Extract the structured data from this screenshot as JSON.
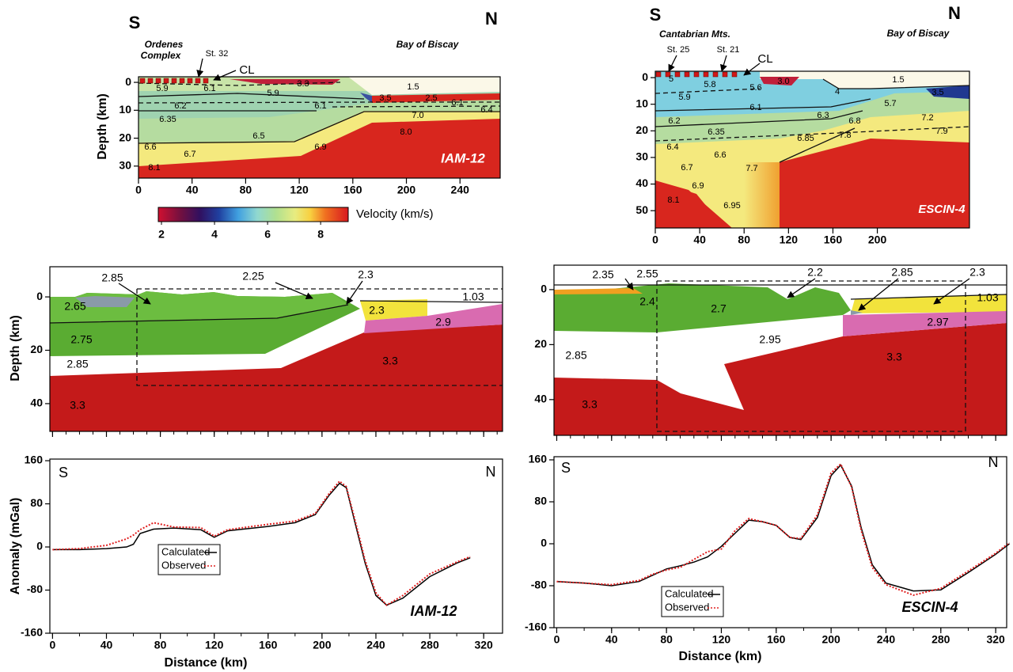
{
  "chart_data": [
    {
      "type": "section",
      "xlim": [
        0,
        270
      ],
      "ylim": [
        -2,
        34.3
      ],
      "xticks": [
        0,
        40,
        80,
        120,
        160,
        200,
        240
      ],
      "yticks": [
        0,
        10,
        20,
        30
      ],
      "ylabel": "Depth (km)",
      "region_labels": [
        "5.9",
        "6.1",
        "3.3",
        "5.9",
        "1.5",
        "3.5",
        "2.5",
        "6.2",
        "6.1",
        "6.1",
        "6.4",
        "6.35",
        "7.0",
        "6.5",
        "8.0",
        "6.6",
        "6.7",
        "6.9",
        "8.1"
      ],
      "annotations": [
        "S",
        "N",
        "Ordenes",
        "Complex",
        "St. 32",
        "CL",
        "Bay of Biscay",
        "IAM-12"
      ],
      "colorbar": {
        "label": "Velocity (km/s)",
        "lim": [
          1.88,
          9.04
        ],
        "ticks": [
          2,
          4,
          6,
          8
        ]
      }
    },
    {
      "type": "section",
      "xlim": [
        0,
        283
      ],
      "ylim": [
        -2.4,
        56.5
      ],
      "xticks": [
        0,
        40,
        80,
        120,
        160,
        200
      ],
      "yticks": [
        0,
        10,
        20,
        30,
        40,
        50
      ],
      "region_labels": [
        "5",
        "5.8",
        "5.6",
        "3.0",
        "1.5",
        "4",
        "3.5",
        "5.9",
        "6.1",
        "6.3",
        "5.7",
        "6.2",
        "6.35",
        "6.8",
        "7.2",
        "7.9",
        "6.4",
        "6.6",
        "6.85",
        "7.8",
        "6.7",
        "7.7",
        "6.9",
        "8.1",
        "6.95"
      ],
      "annotations": [
        "S",
        "N",
        "Cantabrian Mts.",
        "St. 25",
        "St. 21",
        "CL",
        "Bay of Biscay",
        "ESCIN-4"
      ]
    },
    {
      "type": "section",
      "xlim": [
        -2,
        334
      ],
      "ylim": [
        -11.3,
        50.4
      ],
      "xticks": [
        0,
        40,
        80,
        120,
        160,
        200,
        240,
        280,
        320
      ],
      "xtick_labels": false,
      "yticks": [
        0,
        20,
        40
      ],
      "ylabel": "Depth (km)",
      "region_labels": [
        "2.85",
        "2.25",
        "2.3",
        "2.65",
        "1.03",
        "2.3",
        "2.9",
        "2.75",
        "2.85",
        "3.3",
        "3.3"
      ]
    },
    {
      "type": "section",
      "xlim": [
        -2,
        328
      ],
      "ylim": [
        -8.9,
        53
      ],
      "xticks": [
        0,
        40,
        80,
        120,
        160,
        200,
        240,
        280,
        320
      ],
      "xtick_labels": false,
      "yticks": [
        0,
        20,
        40
      ],
      "region_labels": [
        "2.35",
        "2.55",
        "2.2",
        "2.85",
        "2.3",
        "2.4",
        "2.7",
        "1.03",
        "2.97",
        "2.95",
        "2.85",
        "3.3",
        "3.3"
      ]
    },
    {
      "type": "line",
      "xlim": [
        -2,
        334
      ],
      "ylim": [
        -160,
        163
      ],
      "xticks": [
        0,
        40,
        80,
        120,
        160,
        200,
        240,
        280,
        320
      ],
      "yticks": [
        -160,
        -80,
        0,
        80,
        160
      ],
      "xlabel": "Distance (km)",
      "ylabel": "Anomaly (mGal)",
      "legend": "lower left",
      "annotations": [
        "S",
        "N",
        "IAM-12"
      ],
      "x": [
        0,
        20,
        40,
        55,
        60,
        65,
        75,
        90,
        110,
        120,
        130,
        160,
        180,
        195,
        205,
        213,
        218,
        225,
        232,
        240,
        248,
        260,
        280,
        300,
        310
      ],
      "series": [
        {
          "name": "Calculated",
          "color": "#000000",
          "linestyle": "solid",
          "values": [
            -5,
            -5,
            -3,
            0,
            5,
            25,
            33,
            35,
            32,
            18,
            30,
            38,
            45,
            60,
            95,
            118,
            110,
            40,
            -30,
            -90,
            -108,
            -95,
            -55,
            -30,
            -20
          ]
        },
        {
          "name": "Observed",
          "color": "#e02020",
          "linestyle": "dotted",
          "values": [
            -5,
            -3,
            3,
            15,
            22,
            32,
            45,
            37,
            36,
            20,
            32,
            42,
            48,
            62,
            98,
            122,
            112,
            45,
            -25,
            -85,
            -108,
            -90,
            -50,
            -28,
            -18
          ]
        }
      ]
    },
    {
      "type": "line",
      "xlim": [
        -2,
        328
      ],
      "ylim": [
        -160,
        166
      ],
      "xticks": [
        0,
        40,
        80,
        120,
        160,
        200,
        240,
        280,
        320
      ],
      "yticks": [
        -160,
        -80,
        0,
        80,
        160
      ],
      "xlabel": "Distance (km)",
      "legend": "lower left",
      "annotations": [
        "S",
        "N",
        "ESCIN-4"
      ],
      "x": [
        0,
        20,
        40,
        60,
        70,
        80,
        90,
        100,
        110,
        120,
        130,
        140,
        150,
        160,
        170,
        178,
        190,
        200,
        207,
        215,
        222,
        230,
        240,
        260,
        280,
        300,
        320,
        330
      ],
      "series": [
        {
          "name": "Calculated",
          "color": "#000000",
          "linestyle": "solid",
          "values": [
            -72,
            -75,
            -80,
            -72,
            -60,
            -48,
            -42,
            -35,
            -25,
            -5,
            20,
            45,
            42,
            35,
            12,
            8,
            50,
            130,
            150,
            110,
            30,
            -40,
            -75,
            -90,
            -88,
            -55,
            -20,
            0
          ]
        },
        {
          "name": "Observed",
          "color": "#e02020",
          "linestyle": "dotted",
          "values": [
            -72,
            -75,
            -78,
            -70,
            -58,
            -50,
            -45,
            -30,
            -15,
            -10,
            25,
            48,
            42,
            35,
            12,
            10,
            55,
            135,
            152,
            108,
            25,
            -45,
            -78,
            -98,
            -85,
            -52,
            -18,
            2
          ]
        }
      ]
    }
  ]
}
